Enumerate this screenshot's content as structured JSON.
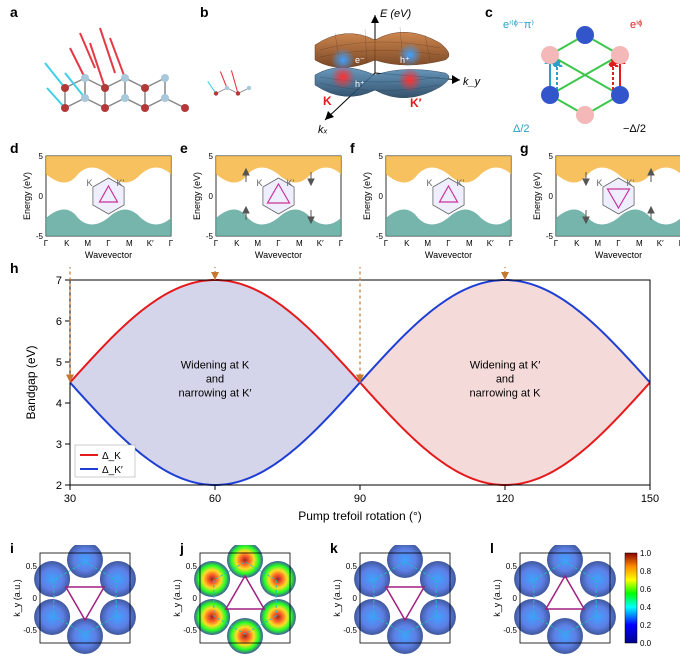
{
  "panels": {
    "a": {
      "label": "a"
    },
    "b": {
      "label": "b",
      "axis_e": "E (eV)",
      "axis_kx": "kₓ",
      "axis_ky": "k_y",
      "K": "K",
      "Kp": "K′",
      "e": "e⁻",
      "h": "h⁺"
    },
    "c": {
      "label": "c",
      "phase1": "eⁱᶲ",
      "phase2": "eⁱ⁽ᶲ⁻ᵖ⁾",
      "delta_plus": "Δ/2",
      "delta_minus": "−Δ/2"
    },
    "d": {
      "label": "d"
    },
    "e": {
      "label": "e"
    },
    "f": {
      "label": "f"
    },
    "g": {
      "label": "g"
    },
    "h": {
      "label": "h",
      "region1": "Widening at K\nand\nnarrowing at K′",
      "region2": "Widening at K′\nand\nnarrowing at K",
      "legend_K": "Δ_K",
      "legend_Kp": "Δ_K′"
    },
    "i": {
      "label": "i"
    },
    "j": {
      "label": "j"
    },
    "k": {
      "label": "k"
    },
    "l": {
      "label": "l"
    }
  },
  "bandplot": {
    "ylabel": "Energy (eV)",
    "xlabel": "Wavevector",
    "ticks": [
      "Γ",
      "K",
      "M",
      "Γ",
      "M",
      "K′",
      "Γ"
    ],
    "ylim": [
      -5,
      5
    ],
    "yticks": [
      -5,
      0,
      5
    ],
    "K": "K",
    "Kp": "K′",
    "conduction_color": "#f5b642",
    "valence_color": "#5ea89c",
    "hex_outer": "#666666",
    "hex_inner": "#cc3399"
  },
  "mainchart": {
    "xlabel": "Pump trefoil rotation (°)",
    "ylabel": "Bandgap (eV)",
    "xlim": [
      30,
      150
    ],
    "ylim": [
      2,
      7
    ],
    "xticks": [
      30,
      60,
      90,
      120,
      150
    ],
    "yticks": [
      2,
      3,
      4,
      5,
      6,
      7
    ],
    "line_K_color": "#e41a1c",
    "line_Kp_color": "#1f3fd4",
    "region1_fill": "#d4d4ea",
    "region2_fill": "#f5dada",
    "arrow_color": "#c7782f"
  },
  "heatmap": {
    "ylabel": "k_y (a.u.)",
    "yticks": [
      -0.5,
      0,
      0.5
    ],
    "colorbar_ticks": [
      0,
      0.2,
      0.4,
      0.6,
      0.8,
      1.0
    ],
    "triangle_color": "#a01f80",
    "hex_color": "#20c0c0"
  },
  "colors": {
    "sphere_red": "#b33939",
    "sphere_lightblue": "#a8c8dc",
    "bond_gray": "#888888",
    "bond_red": "#e63946",
    "bond_cyan": "#3fd0e8",
    "surface_top": "#8b4513",
    "surface_bot": "#2e5c8a",
    "hole_glow": "#ff3030",
    "elec_glow": "#40a0ff",
    "hexc_blue": "#3355cc",
    "hexc_pink": "#f4b8b8",
    "hexc_green": "#3cc84a"
  }
}
